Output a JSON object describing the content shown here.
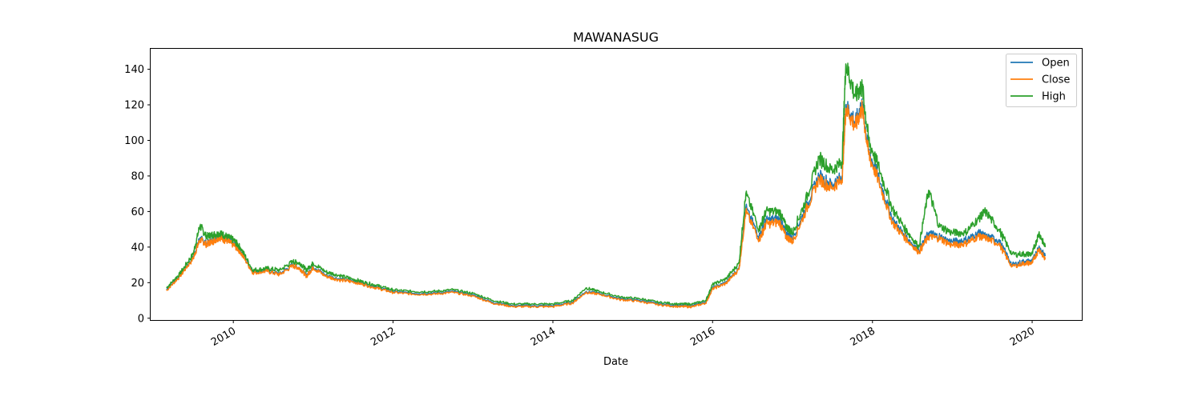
{
  "chart_data": {
    "type": "line",
    "title": "MAWANASUG",
    "xlabel": "Date",
    "ylabel": "",
    "xlim": [
      "2008-12-19",
      "2020-08-15"
    ],
    "ylim": [
      -1,
      151.5
    ],
    "x_ticks": [
      {
        "date": "2010-01-01",
        "label": "2010"
      },
      {
        "date": "2012-01-01",
        "label": "2012"
      },
      {
        "date": "2014-01-01",
        "label": "2014"
      },
      {
        "date": "2016-01-01",
        "label": "2016"
      },
      {
        "date": "2018-01-01",
        "label": "2018"
      },
      {
        "date": "2020-01-01",
        "label": "2020"
      }
    ],
    "y_ticks": [
      0,
      20,
      40,
      60,
      80,
      100,
      120,
      140
    ],
    "grid": false,
    "legend": "top-right",
    "x": [
      "2009-03-01",
      "2009-05-01",
      "2009-07-01",
      "2009-08-01",
      "2009-09-01",
      "2009-10-01",
      "2009-11-01",
      "2009-12-01",
      "2010-01-01",
      "2010-02-01",
      "2010-04-01",
      "2010-06-01",
      "2010-08-01",
      "2010-10-01",
      "2010-11-01",
      "2010-12-01",
      "2011-01-01",
      "2011-03-01",
      "2011-05-01",
      "2011-07-01",
      "2011-09-01",
      "2011-11-01",
      "2012-01-01",
      "2012-04-01",
      "2012-07-01",
      "2012-10-01",
      "2013-01-01",
      "2013-04-01",
      "2013-07-01",
      "2013-10-01",
      "2014-01-01",
      "2014-04-01",
      "2014-06-01",
      "2014-08-01",
      "2014-11-01",
      "2015-02-01",
      "2015-05-01",
      "2015-08-01",
      "2015-10-01",
      "2015-12-01",
      "2016-01-01",
      "2016-03-01",
      "2016-05-01",
      "2016-06-01",
      "2016-08-01",
      "2016-09-01",
      "2016-11-01",
      "2016-12-01",
      "2017-01-01",
      "2017-03-01",
      "2017-05-01",
      "2017-07-01",
      "2017-08-15",
      "2017-09-01",
      "2017-10-15",
      "2017-11-15",
      "2017-12-15",
      "2018-02-01",
      "2018-04-01",
      "2018-06-01",
      "2018-08-01",
      "2018-09-15",
      "2018-11-01",
      "2019-01-01",
      "2019-03-01",
      "2019-05-01",
      "2019-06-01",
      "2019-08-01",
      "2019-10-01",
      "2019-12-01",
      "2020-01-01",
      "2020-02-01",
      "2020-03-01"
    ],
    "series": [
      {
        "name": "Open",
        "color": "#1f77b4",
        "values": [
          16,
          24,
          34,
          45,
          42,
          44,
          46,
          44,
          42,
          38,
          26,
          27,
          25,
          30,
          28,
          24,
          29,
          24,
          22,
          21,
          19,
          17,
          15,
          14,
          14,
          15,
          13,
          9,
          7,
          7,
          7,
          9,
          15,
          14,
          11,
          10,
          8,
          7,
          7,
          9,
          17,
          20,
          28,
          62,
          46,
          55,
          56,
          48,
          45,
          62,
          80,
          75,
          80,
          120,
          110,
          120,
          94,
          78,
          56,
          46,
          38,
          48,
          46,
          43,
          44,
          48,
          46,
          44,
          30,
          32,
          32,
          40,
          35
        ]
      },
      {
        "name": "Close",
        "color": "#ff7f0e",
        "values": [
          15.5,
          23.5,
          33.5,
          44,
          41.5,
          43.5,
          45.5,
          43.5,
          41.5,
          37.5,
          25.5,
          26.5,
          24.5,
          29.5,
          28,
          23.5,
          28.5,
          23.5,
          21.5,
          20.5,
          18.5,
          16.5,
          14.5,
          13.5,
          13.5,
          14.5,
          12.5,
          8.5,
          6.5,
          6.5,
          6.5,
          8.5,
          14.5,
          13.5,
          10.5,
          9.5,
          7.5,
          6.5,
          6.5,
          8.5,
          16.5,
          19.5,
          27.5,
          60,
          44,
          53,
          54,
          46,
          43,
          60,
          78,
          73,
          78,
          118,
          108,
          118,
          92,
          76,
          54,
          45,
          37,
          46,
          45,
          41,
          42,
          46,
          45,
          42,
          29,
          31,
          31,
          39,
          33
        ]
      },
      {
        "name": "High",
        "color": "#2ca02c",
        "values": [
          17,
          25,
          36,
          52,
          46,
          47,
          48,
          46,
          44,
          40,
          27,
          28,
          27,
          32,
          31,
          27,
          31,
          26,
          24,
          22,
          20,
          18,
          16,
          15,
          15,
          16,
          14,
          10,
          8,
          8,
          8,
          10,
          17,
          15,
          12,
          11,
          9,
          8,
          8,
          10,
          19,
          22,
          31,
          70,
          50,
          60,
          60,
          52,
          48,
          66,
          90,
          83,
          88,
          143,
          125,
          130,
          100,
          84,
          62,
          50,
          40,
          72,
          52,
          48,
          48,
          56,
          60,
          50,
          36,
          36,
          36,
          48,
          40
        ]
      }
    ]
  }
}
